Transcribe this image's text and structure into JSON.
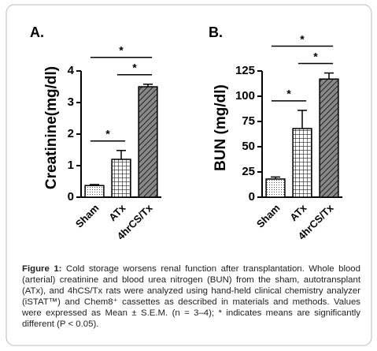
{
  "chart_data": [
    {
      "type": "bar",
      "panel": "A.",
      "ylabel": "Creatinine(mg/dl)",
      "categories": [
        "Sham",
        "ATx",
        "4hrCS/Tx"
      ],
      "values": [
        0.37,
        1.2,
        3.5
      ],
      "errors": [
        0.03,
        0.28,
        0.08
      ],
      "fills": [
        "dots",
        "grid",
        "hatch"
      ],
      "color": "#000000",
      "ylim": [
        0,
        4
      ],
      "yticks": [
        0,
        1,
        2,
        3,
        4
      ],
      "significance": [
        {
          "groups": [
            "Sham",
            "ATx"
          ],
          "label": "*"
        },
        {
          "groups": [
            "ATx",
            "4hrCS/Tx"
          ],
          "label": "*"
        },
        {
          "groups": [
            "Sham",
            "4hrCS/Tx"
          ],
          "label": "*"
        }
      ]
    },
    {
      "type": "bar",
      "panel": "B.",
      "ylabel": "BUN (mg/dl)",
      "categories": [
        "Sham",
        "ATx",
        "4hrCS/Tx"
      ],
      "values": [
        18,
        68,
        117
      ],
      "errors": [
        2,
        18,
        6
      ],
      "fills": [
        "dots",
        "grid",
        "hatch"
      ],
      "color": "#000000",
      "ylim": [
        0,
        125
      ],
      "yticks": [
        0,
        25,
        50,
        75,
        100,
        125
      ],
      "significance": [
        {
          "groups": [
            "Sham",
            "ATx"
          ],
          "label": "*"
        },
        {
          "groups": [
            "ATx",
            "4hrCS/Tx"
          ],
          "label": "*"
        },
        {
          "groups": [
            "Sham",
            "4hrCS/Tx"
          ],
          "label": "*"
        }
      ]
    }
  ],
  "caption": {
    "label": "Figure 1:",
    "text": "Cold storage worsens renal function after transplantation. Whole blood (arterial) creatinine and blood urea nitrogen (BUN) from the sham, autotransplant (ATx), and 4hCS/Tx rats were analyzed using hand-held clinical chemistry analyzer (iSTAT™) and Chem8⁺ cassettes as described in materials and methods. Values were expressed as Mean ± S.E.M. (n = 3–4); * indicates means are significantly different (P < 0.05)."
  }
}
